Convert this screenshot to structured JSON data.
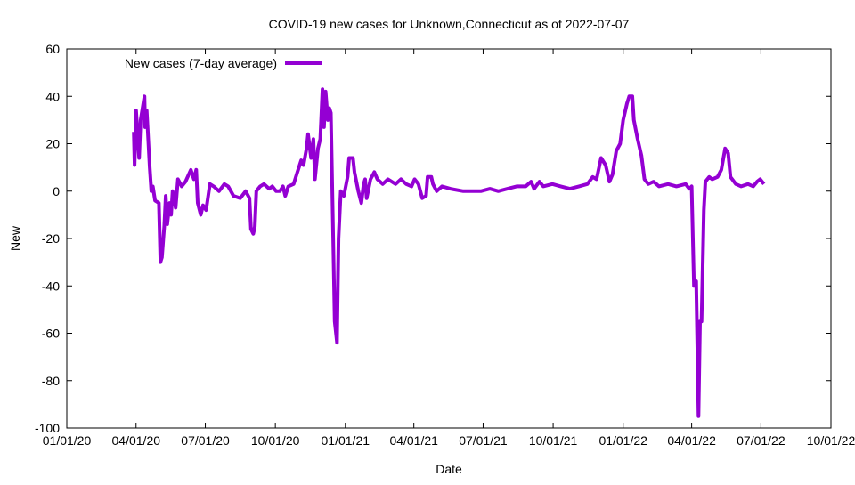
{
  "chart_data": {
    "type": "line",
    "title": "COVID-19 new cases for Unknown,Connecticut as of 2022-07-07",
    "xlabel": "Date",
    "ylabel": "New",
    "x_origin": "2020-01-01",
    "x_unit": "days since 2020-01-01",
    "xlim": [
      0,
      1004
    ],
    "ylim": [
      -100,
      60
    ],
    "y_ticks": [
      60,
      40,
      20,
      0,
      -20,
      -40,
      -60,
      -80,
      -100
    ],
    "x_ticks": [
      {
        "day": 0,
        "label": "01/01/20"
      },
      {
        "day": 91,
        "label": "04/01/20"
      },
      {
        "day": 182,
        "label": "07/01/20"
      },
      {
        "day": 274,
        "label": "10/01/20"
      },
      {
        "day": 366,
        "label": "01/01/21"
      },
      {
        "day": 456,
        "label": "04/01/21"
      },
      {
        "day": 547,
        "label": "07/01/21"
      },
      {
        "day": 639,
        "label": "10/01/21"
      },
      {
        "day": 731,
        "label": "01/01/22"
      },
      {
        "day": 821,
        "label": "04/01/22"
      },
      {
        "day": 912,
        "label": "07/01/22"
      },
      {
        "day": 1004,
        "label": "10/01/22"
      }
    ],
    "grid": false,
    "legend": {
      "position": "top-left",
      "entries": [
        "New cases (7-day average)"
      ]
    },
    "series": [
      {
        "name": "New cases (7-day average)",
        "color": "#9400D3",
        "points": [
          [
            88,
            25
          ],
          [
            89,
            11
          ],
          [
            91,
            34
          ],
          [
            95,
            14
          ],
          [
            97,
            30
          ],
          [
            102,
            40
          ],
          [
            103,
            27
          ],
          [
            105,
            34
          ],
          [
            109,
            10
          ],
          [
            111,
            0
          ],
          [
            113,
            2
          ],
          [
            116,
            -4
          ],
          [
            121,
            -5
          ],
          [
            123,
            -30
          ],
          [
            125,
            -28
          ],
          [
            128,
            -15
          ],
          [
            130,
            -2
          ],
          [
            132,
            -14
          ],
          [
            135,
            -5
          ],
          [
            137,
            -10
          ],
          [
            139,
            0
          ],
          [
            143,
            -7
          ],
          [
            146,
            5
          ],
          [
            151,
            2
          ],
          [
            156,
            4
          ],
          [
            163,
            9
          ],
          [
            167,
            5
          ],
          [
            170,
            9
          ],
          [
            172,
            -5
          ],
          [
            176,
            -10
          ],
          [
            179,
            -6
          ],
          [
            183,
            -8
          ],
          [
            188,
            3
          ],
          [
            193,
            2
          ],
          [
            200,
            0
          ],
          [
            207,
            3
          ],
          [
            212,
            2
          ],
          [
            219,
            -2
          ],
          [
            228,
            -3
          ],
          [
            235,
            0
          ],
          [
            240,
            -3
          ],
          [
            242,
            -16
          ],
          [
            245,
            -18
          ],
          [
            247,
            -15
          ],
          [
            249,
            0
          ],
          [
            254,
            2
          ],
          [
            259,
            3
          ],
          [
            266,
            1
          ],
          [
            270,
            2
          ],
          [
            275,
            0
          ],
          [
            280,
            0
          ],
          [
            284,
            2
          ],
          [
            287,
            -2
          ],
          [
            291,
            2
          ],
          [
            298,
            3
          ],
          [
            303,
            8
          ],
          [
            308,
            13
          ],
          [
            311,
            11
          ],
          [
            315,
            18
          ],
          [
            317,
            24
          ],
          [
            321,
            14
          ],
          [
            324,
            22
          ],
          [
            326,
            5
          ],
          [
            330,
            18
          ],
          [
            333,
            22
          ],
          [
            336,
            43
          ],
          [
            338,
            27
          ],
          [
            340,
            42
          ],
          [
            343,
            30
          ],
          [
            345,
            35
          ],
          [
            347,
            33
          ],
          [
            350,
            -20
          ],
          [
            352,
            -55
          ],
          [
            355,
            -64
          ],
          [
            357,
            -20
          ],
          [
            360,
            0
          ],
          [
            364,
            -2
          ],
          [
            369,
            6
          ],
          [
            371,
            14
          ],
          [
            376,
            14
          ],
          [
            378,
            8
          ],
          [
            383,
            0
          ],
          [
            387,
            -5
          ],
          [
            390,
            3
          ],
          [
            392,
            5
          ],
          [
            394,
            -3
          ],
          [
            399,
            5
          ],
          [
            404,
            8
          ],
          [
            408,
            5
          ],
          [
            415,
            3
          ],
          [
            422,
            5
          ],
          [
            432,
            3
          ],
          [
            439,
            5
          ],
          [
            446,
            3
          ],
          [
            453,
            2
          ],
          [
            457,
            5
          ],
          [
            462,
            3
          ],
          [
            467,
            -3
          ],
          [
            472,
            -2
          ],
          [
            474,
            6
          ],
          [
            479,
            6
          ],
          [
            481,
            3
          ],
          [
            486,
            0
          ],
          [
            493,
            2
          ],
          [
            504,
            1
          ],
          [
            521,
            0
          ],
          [
            532,
            0
          ],
          [
            544,
            0
          ],
          [
            556,
            1
          ],
          [
            567,
            0
          ],
          [
            579,
            1
          ],
          [
            591,
            2
          ],
          [
            603,
            2
          ],
          [
            610,
            4
          ],
          [
            614,
            1
          ],
          [
            621,
            4
          ],
          [
            626,
            2
          ],
          [
            638,
            3
          ],
          [
            649,
            2
          ],
          [
            661,
            1
          ],
          [
            673,
            2
          ],
          [
            684,
            3
          ],
          [
            691,
            6
          ],
          [
            696,
            5
          ],
          [
            702,
            14
          ],
          [
            708,
            11
          ],
          [
            713,
            4
          ],
          [
            717,
            7
          ],
          [
            722,
            17
          ],
          [
            727,
            20
          ],
          [
            731,
            30
          ],
          [
            736,
            37
          ],
          [
            739,
            40
          ],
          [
            743,
            40
          ],
          [
            745,
            30
          ],
          [
            750,
            22
          ],
          [
            755,
            15
          ],
          [
            759,
            5
          ],
          [
            764,
            3
          ],
          [
            771,
            4
          ],
          [
            778,
            2
          ],
          [
            790,
            3
          ],
          [
            801,
            2
          ],
          [
            813,
            3
          ],
          [
            818,
            1
          ],
          [
            821,
            2
          ],
          [
            824,
            -40
          ],
          [
            827,
            -38
          ],
          [
            830,
            -95
          ],
          [
            832,
            -55
          ],
          [
            834,
            -55
          ],
          [
            837,
            -8
          ],
          [
            839,
            4
          ],
          [
            844,
            6
          ],
          [
            848,
            5
          ],
          [
            855,
            6
          ],
          [
            860,
            9
          ],
          [
            865,
            18
          ],
          [
            869,
            16
          ],
          [
            872,
            6
          ],
          [
            879,
            3
          ],
          [
            886,
            2
          ],
          [
            895,
            3
          ],
          [
            902,
            2
          ],
          [
            907,
            4
          ],
          [
            911,
            5
          ],
          [
            916,
            3
          ]
        ]
      }
    ]
  }
}
